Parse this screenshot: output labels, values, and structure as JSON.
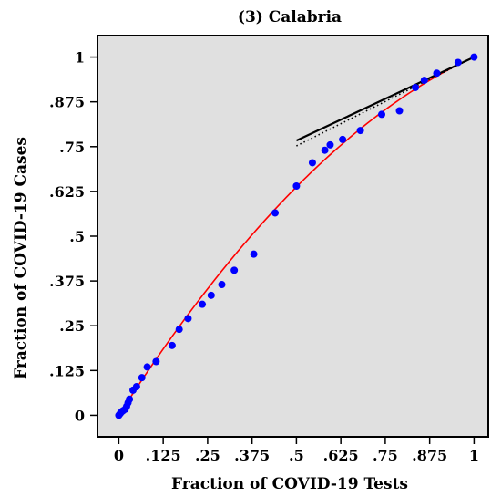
{
  "chart_data": {
    "type": "scatter",
    "title": "(3) Calabria",
    "xlabel": "Fraction of COVID-19 Tests",
    "ylabel": "Fraction of COVID-19 Cases",
    "xlim": [
      -0.06,
      1.04
    ],
    "ylim": [
      -0.06,
      1.06
    ],
    "x_ticks": [
      {
        "value": 0,
        "label": "0"
      },
      {
        "value": 0.125,
        "label": ".125"
      },
      {
        "value": 0.25,
        "label": ".25"
      },
      {
        "value": 0.375,
        "label": ".375"
      },
      {
        "value": 0.5,
        "label": ".5"
      },
      {
        "value": 0.625,
        "label": ".625"
      },
      {
        "value": 0.75,
        "label": ".75"
      },
      {
        "value": 0.875,
        "label": ".875"
      },
      {
        "value": 1,
        "label": "1"
      }
    ],
    "y_ticks": [
      {
        "value": 0,
        "label": "0"
      },
      {
        "value": 0.125,
        "label": ".125"
      },
      {
        "value": 0.25,
        "label": ".25"
      },
      {
        "value": 0.375,
        "label": ".375"
      },
      {
        "value": 0.5,
        "label": ".5"
      },
      {
        "value": 0.625,
        "label": ".625"
      },
      {
        "value": 0.75,
        "label": ".75"
      },
      {
        "value": 0.875,
        "label": ".875"
      },
      {
        "value": 1,
        "label": "1"
      }
    ],
    "points": {
      "color": "#0000ff",
      "x": [
        0.0,
        0.004,
        0.008,
        0.012,
        0.018,
        0.022,
        0.026,
        0.03,
        0.04,
        0.05,
        0.065,
        0.08,
        0.105,
        0.15,
        0.17,
        0.195,
        0.235,
        0.26,
        0.29,
        0.325,
        0.38,
        0.44,
        0.5,
        0.545,
        0.58,
        0.595,
        0.63,
        0.68,
        0.74,
        0.79,
        0.835,
        0.86,
        0.895,
        0.955,
        1.0
      ],
      "y": [
        0.0,
        0.005,
        0.01,
        0.013,
        0.017,
        0.025,
        0.035,
        0.045,
        0.07,
        0.08,
        0.105,
        0.135,
        0.15,
        0.195,
        0.24,
        0.27,
        0.31,
        0.335,
        0.365,
        0.405,
        0.45,
        0.565,
        0.64,
        0.705,
        0.74,
        0.755,
        0.77,
        0.795,
        0.84,
        0.85,
        0.915,
        0.935,
        0.955,
        0.985,
        1.0
      ]
    },
    "fit_curve": {
      "color": "#ff0000",
      "x": [
        0,
        0.05,
        0.1,
        0.15,
        0.2,
        0.25,
        0.3,
        0.35,
        0.4,
        0.45,
        0.5,
        0.55,
        0.6,
        0.65,
        0.7,
        0.75,
        0.8,
        0.85,
        0.9,
        0.95,
        1.0
      ],
      "y": [
        0,
        0.077,
        0.152,
        0.224,
        0.293,
        0.361,
        0.426,
        0.489,
        0.549,
        0.608,
        0.664,
        0.718,
        0.769,
        0.819,
        0.866,
        0.911,
        0.954,
        0.995,
        1.033,
        1.069,
        1.0
      ]
    },
    "tangent_solid": {
      "color": "#000000",
      "x": [
        0.5,
        1.0
      ],
      "y": [
        0.767,
        1.0
      ]
    },
    "tangent_dotted": {
      "color": "#000000",
      "x": [
        0.5,
        1.0
      ],
      "y": [
        0.752,
        1.0
      ]
    },
    "background": "#e0e0e0",
    "grid": false
  }
}
